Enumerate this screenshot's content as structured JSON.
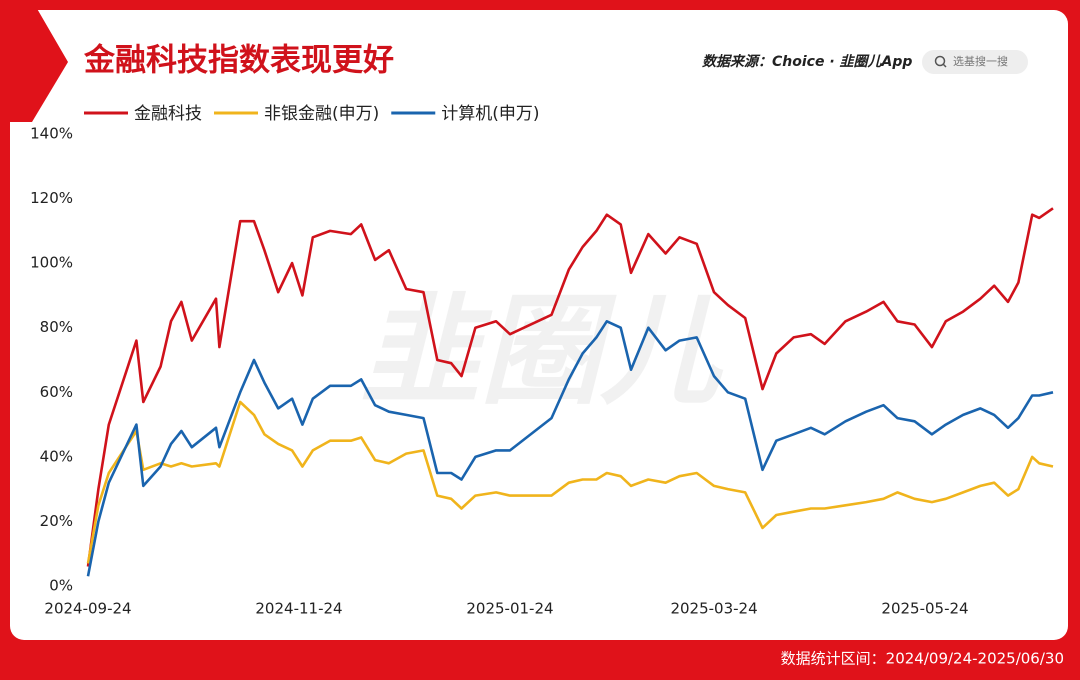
{
  "header": {
    "source": "数据来源：Choice · 韭圈儿App",
    "search": "选基搜一搜"
  },
  "watermark": "韭圈儿",
  "footer": "数据统计区间：2024/09/24-2025/06/30",
  "chart_data": {
    "type": "line",
    "title": "金融科技指数表现更好",
    "x": [
      "2024-09-24",
      "2024-09-27",
      "2024-09-30",
      "2024-10-08",
      "2024-10-10",
      "2024-10-15",
      "2024-10-18",
      "2024-10-21",
      "2024-10-24",
      "2024-10-31",
      "2024-11-01",
      "2024-11-07",
      "2024-11-11",
      "2024-11-14",
      "2024-11-18",
      "2024-11-22",
      "2024-11-25",
      "2024-11-28",
      "2024-12-03",
      "2024-12-09",
      "2024-12-12",
      "2024-12-16",
      "2024-12-20",
      "2024-12-25",
      "2024-12-30",
      "2025-01-03",
      "2025-01-07",
      "2025-01-10",
      "2025-01-14",
      "2025-01-20",
      "2025-01-24",
      "2025-02-05",
      "2025-02-10",
      "2025-02-14",
      "2025-02-18",
      "2025-02-21",
      "2025-02-25",
      "2025-02-28",
      "2025-03-05",
      "2025-03-10",
      "2025-03-14",
      "2025-03-19",
      "2025-03-24",
      "2025-03-28",
      "2025-04-02",
      "2025-04-07",
      "2025-04-11",
      "2025-04-16",
      "2025-04-21",
      "2025-04-25",
      "2025-05-01",
      "2025-05-07",
      "2025-05-12",
      "2025-05-16",
      "2025-05-21",
      "2025-05-26",
      "2025-05-30",
      "2025-06-04",
      "2025-06-09",
      "2025-06-13",
      "2025-06-17",
      "2025-06-20",
      "2025-06-24",
      "2025-06-26",
      "2025-06-30"
    ],
    "series": [
      {
        "name": "金融科技",
        "color": "#d0121b",
        "values": [
          6,
          30,
          50,
          76,
          57,
          68,
          82,
          88,
          76,
          89,
          74,
          113,
          113,
          104,
          91,
          100,
          90,
          108,
          110,
          109,
          112,
          101,
          104,
          92,
          91,
          70,
          69,
          65,
          80,
          82,
          78,
          84,
          98,
          105,
          110,
          115,
          112,
          97,
          109,
          103,
          108,
          106,
          91,
          87,
          83,
          61,
          72,
          77,
          78,
          75,
          82,
          85,
          88,
          82,
          81,
          74,
          82,
          85,
          89,
          93,
          88,
          94,
          115,
          114,
          117
        ]
      },
      {
        "name": "非银金融(申万)",
        "color": "#f0b41c",
        "values": [
          7,
          25,
          35,
          48,
          36,
          38,
          37,
          38,
          37,
          38,
          37,
          57,
          53,
          47,
          44,
          42,
          37,
          42,
          45,
          45,
          46,
          39,
          38,
          41,
          42,
          28,
          27,
          24,
          28,
          29,
          28,
          28,
          32,
          33,
          33,
          35,
          34,
          31,
          33,
          32,
          34,
          35,
          31,
          30,
          29,
          18,
          22,
          23,
          24,
          24,
          25,
          26,
          27,
          29,
          27,
          26,
          27,
          29,
          31,
          32,
          28,
          30,
          40,
          38,
          37
        ]
      },
      {
        "name": "计算机(申万)",
        "color": "#1a64ae",
        "values": [
          3,
          20,
          32,
          50,
          31,
          37,
          44,
          48,
          43,
          49,
          43,
          60,
          70,
          63,
          55,
          58,
          50,
          58,
          62,
          62,
          64,
          56,
          54,
          53,
          52,
          35,
          35,
          33,
          40,
          42,
          42,
          52,
          64,
          72,
          77,
          82,
          80,
          67,
          80,
          73,
          76,
          77,
          65,
          60,
          58,
          36,
          45,
          47,
          49,
          47,
          51,
          54,
          56,
          52,
          51,
          47,
          50,
          53,
          55,
          53,
          49,
          52,
          59,
          59,
          60
        ]
      }
    ],
    "xlim": [
      "2024-09-24",
      "2025-06-30"
    ],
    "xticks": [
      "2024-09-24",
      "2024-11-24",
      "2025-01-24",
      "2025-03-24",
      "2025-05-24"
    ],
    "ylim": [
      0,
      140
    ],
    "yticks": [
      {
        "value": 0,
        "label": "0%"
      },
      {
        "value": 20,
        "label": "20%"
      },
      {
        "value": 40,
        "label": "40%"
      },
      {
        "value": 60,
        "label": "60%"
      },
      {
        "value": 80,
        "label": "80%"
      },
      {
        "value": 100,
        "label": "100%"
      },
      {
        "value": 120,
        "label": "120%"
      },
      {
        "value": 140,
        "label": "140%"
      }
    ]
  }
}
